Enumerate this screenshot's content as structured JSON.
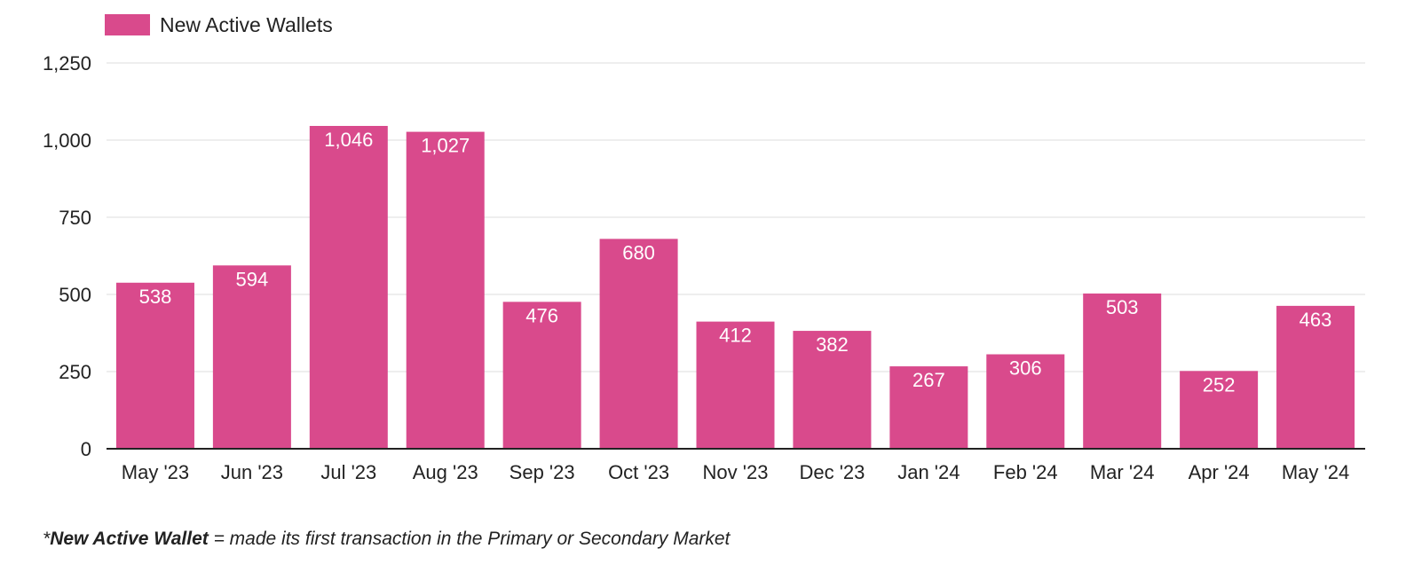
{
  "chart_data": {
    "type": "bar",
    "categories": [
      "May '23",
      "Jun '23",
      "Jul '23",
      "Aug '23",
      "Sep '23",
      "Oct '23",
      "Nov '23",
      "Dec '23",
      "Jan '24",
      "Feb '24",
      "Mar '24",
      "Apr '24",
      "May '24"
    ],
    "series": [
      {
        "name": "New Active Wallets",
        "values": [
          538,
          594,
          1046,
          1027,
          476,
          680,
          412,
          382,
          267,
          306,
          503,
          252,
          463
        ],
        "data_labels": [
          "538",
          "594",
          "1,046",
          "1,027",
          "476",
          "680",
          "412",
          "382",
          "267",
          "306",
          "503",
          "252",
          "463"
        ],
        "color": "#d94a8c"
      }
    ],
    "title": "",
    "xlabel": "",
    "ylabel": "",
    "ylim": [
      0,
      1250
    ],
    "yticks": [
      0,
      250,
      500,
      750,
      1000,
      1250
    ],
    "ytick_labels": [
      "0",
      "250",
      "500",
      "750",
      "1,000",
      "1,250"
    ],
    "grid": true,
    "legend_position": "top-left"
  },
  "footnote": {
    "prefix": "*",
    "term": "New Active Wallet",
    "definition": " = made its first transaction in the Primary or Secondary Market"
  },
  "colors": {
    "bar": "#d94a8c",
    "bar_label": "#ffffff",
    "grid": "#e8e8e8",
    "axis": "#222222",
    "text": "#222222"
  }
}
